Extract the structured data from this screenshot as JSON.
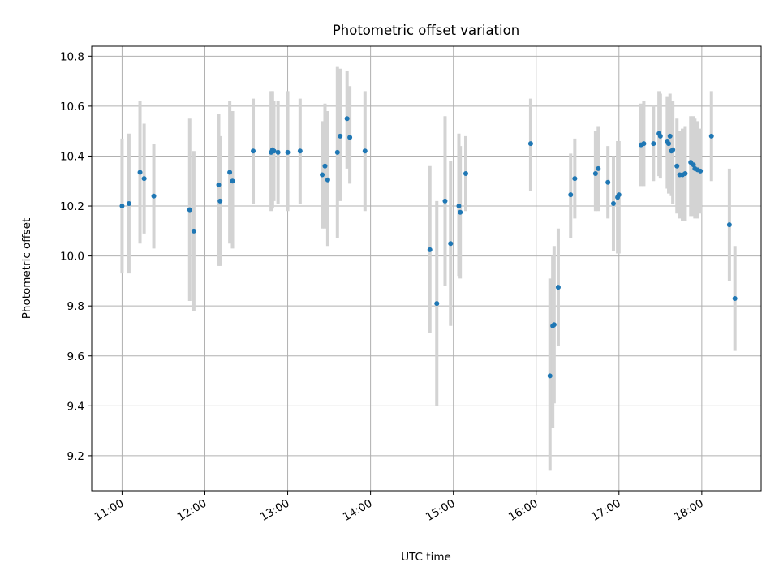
{
  "chart_data": {
    "type": "scatter",
    "title": "Photometric offset variation",
    "xlabel": "UTC time",
    "ylabel": "Photometric offset",
    "xlim": [
      "10:38",
      "18:43"
    ],
    "ylim": [
      9.06,
      10.84
    ],
    "grid": true,
    "x_ticks": [
      "11:00",
      "12:00",
      "13:00",
      "14:00",
      "15:00",
      "16:00",
      "17:00",
      "18:00"
    ],
    "y_ticks": [
      9.2,
      9.4,
      9.6,
      9.8,
      10.0,
      10.2,
      10.4,
      10.6,
      10.8
    ],
    "y_tick_labels": [
      "9.2",
      "9.4",
      "9.6",
      "9.8",
      "10.0",
      "10.2",
      "10.4",
      "10.6",
      "10.8"
    ],
    "errorbar_color": "#d3d3d3",
    "point_color": "#1f77b4",
    "series": [
      {
        "x": [
          "11:00",
          "11:05",
          "11:13",
          "11:16",
          "11:23",
          "11:49",
          "11:52",
          "12:10",
          "12:11",
          "12:18",
          "12:20",
          "12:35",
          "12:48",
          "12:49",
          "12:50",
          "12:53",
          "13:00",
          "13:09",
          "13:25",
          "13:27",
          "13:29",
          "13:36",
          "13:38",
          "13:43",
          "13:45",
          "13:56",
          "14:43",
          "14:48",
          "14:54",
          "14:58",
          "15:04",
          "15:05",
          "15:09",
          "15:56",
          "16:10",
          "16:12",
          "16:13",
          "16:16",
          "16:25",
          "16:28",
          "16:43",
          "16:45",
          "16:52",
          "16:56",
          "16:59",
          "17:00",
          "17:16",
          "17:18",
          "17:25",
          "17:29",
          "17:30",
          "17:35",
          "17:36",
          "17:37",
          "17:38",
          "17:39",
          "17:42",
          "17:44",
          "17:46",
          "17:48",
          "17:52",
          "17:54",
          "17:55",
          "17:57",
          "17:59",
          "18:07",
          "18:20",
          "18:24"
        ],
        "y": [
          10.2,
          10.21,
          10.335,
          10.31,
          10.24,
          10.185,
          10.1,
          10.285,
          10.22,
          10.335,
          10.3,
          10.42,
          10.415,
          10.425,
          10.42,
          10.415,
          10.415,
          10.42,
          10.325,
          10.36,
          10.305,
          10.415,
          10.48,
          10.55,
          10.475,
          10.42,
          10.025,
          9.81,
          10.22,
          10.05,
          10.2,
          10.175,
          10.33,
          10.45,
          9.52,
          9.72,
          9.725,
          9.875,
          10.245,
          10.31,
          10.33,
          10.35,
          10.295,
          10.21,
          10.235,
          10.245,
          10.445,
          10.45,
          10.45,
          10.49,
          10.48,
          10.46,
          10.45,
          10.48,
          10.42,
          10.425,
          10.36,
          10.325,
          10.325,
          10.33,
          10.375,
          10.365,
          10.35,
          10.345,
          10.34,
          10.48,
          10.125,
          9.83
        ],
        "err_low": [
          9.93,
          9.93,
          10.05,
          10.09,
          10.03,
          9.82,
          9.78,
          9.96,
          9.96,
          10.05,
          10.03,
          10.21,
          10.18,
          10.19,
          10.22,
          10.21,
          10.18,
          10.21,
          10.11,
          10.11,
          10.04,
          10.07,
          10.22,
          10.35,
          10.29,
          10.18,
          9.69,
          9.4,
          9.88,
          9.72,
          9.92,
          9.91,
          10.18,
          10.26,
          9.14,
          9.31,
          9.41,
          9.64,
          10.07,
          10.15,
          10.18,
          10.18,
          10.15,
          10.02,
          10.01,
          10.01,
          10.28,
          10.28,
          10.3,
          10.32,
          10.31,
          10.27,
          10.25,
          10.28,
          10.24,
          10.21,
          10.17,
          10.15,
          10.14,
          10.14,
          10.16,
          10.16,
          10.15,
          10.15,
          10.17,
          10.3,
          9.9,
          9.62
        ],
        "err_high": [
          10.47,
          10.49,
          10.62,
          10.53,
          10.45,
          10.55,
          10.42,
          10.57,
          10.48,
          10.62,
          10.58,
          10.63,
          10.66,
          10.66,
          10.62,
          10.62,
          10.66,
          10.63,
          10.54,
          10.61,
          10.58,
          10.76,
          10.75,
          10.74,
          10.68,
          10.66,
          10.36,
          10.22,
          10.56,
          10.38,
          10.49,
          10.44,
          10.48,
          10.63,
          9.91,
          10.0,
          10.04,
          10.11,
          10.41,
          10.47,
          10.5,
          10.52,
          10.44,
          10.4,
          10.46,
          10.46,
          10.61,
          10.62,
          10.6,
          10.66,
          10.65,
          10.64,
          10.63,
          10.65,
          10.6,
          10.62,
          10.55,
          10.5,
          10.51,
          10.52,
          10.56,
          10.56,
          10.55,
          10.54,
          10.51,
          10.66,
          10.35,
          10.04
        ]
      }
    ]
  }
}
